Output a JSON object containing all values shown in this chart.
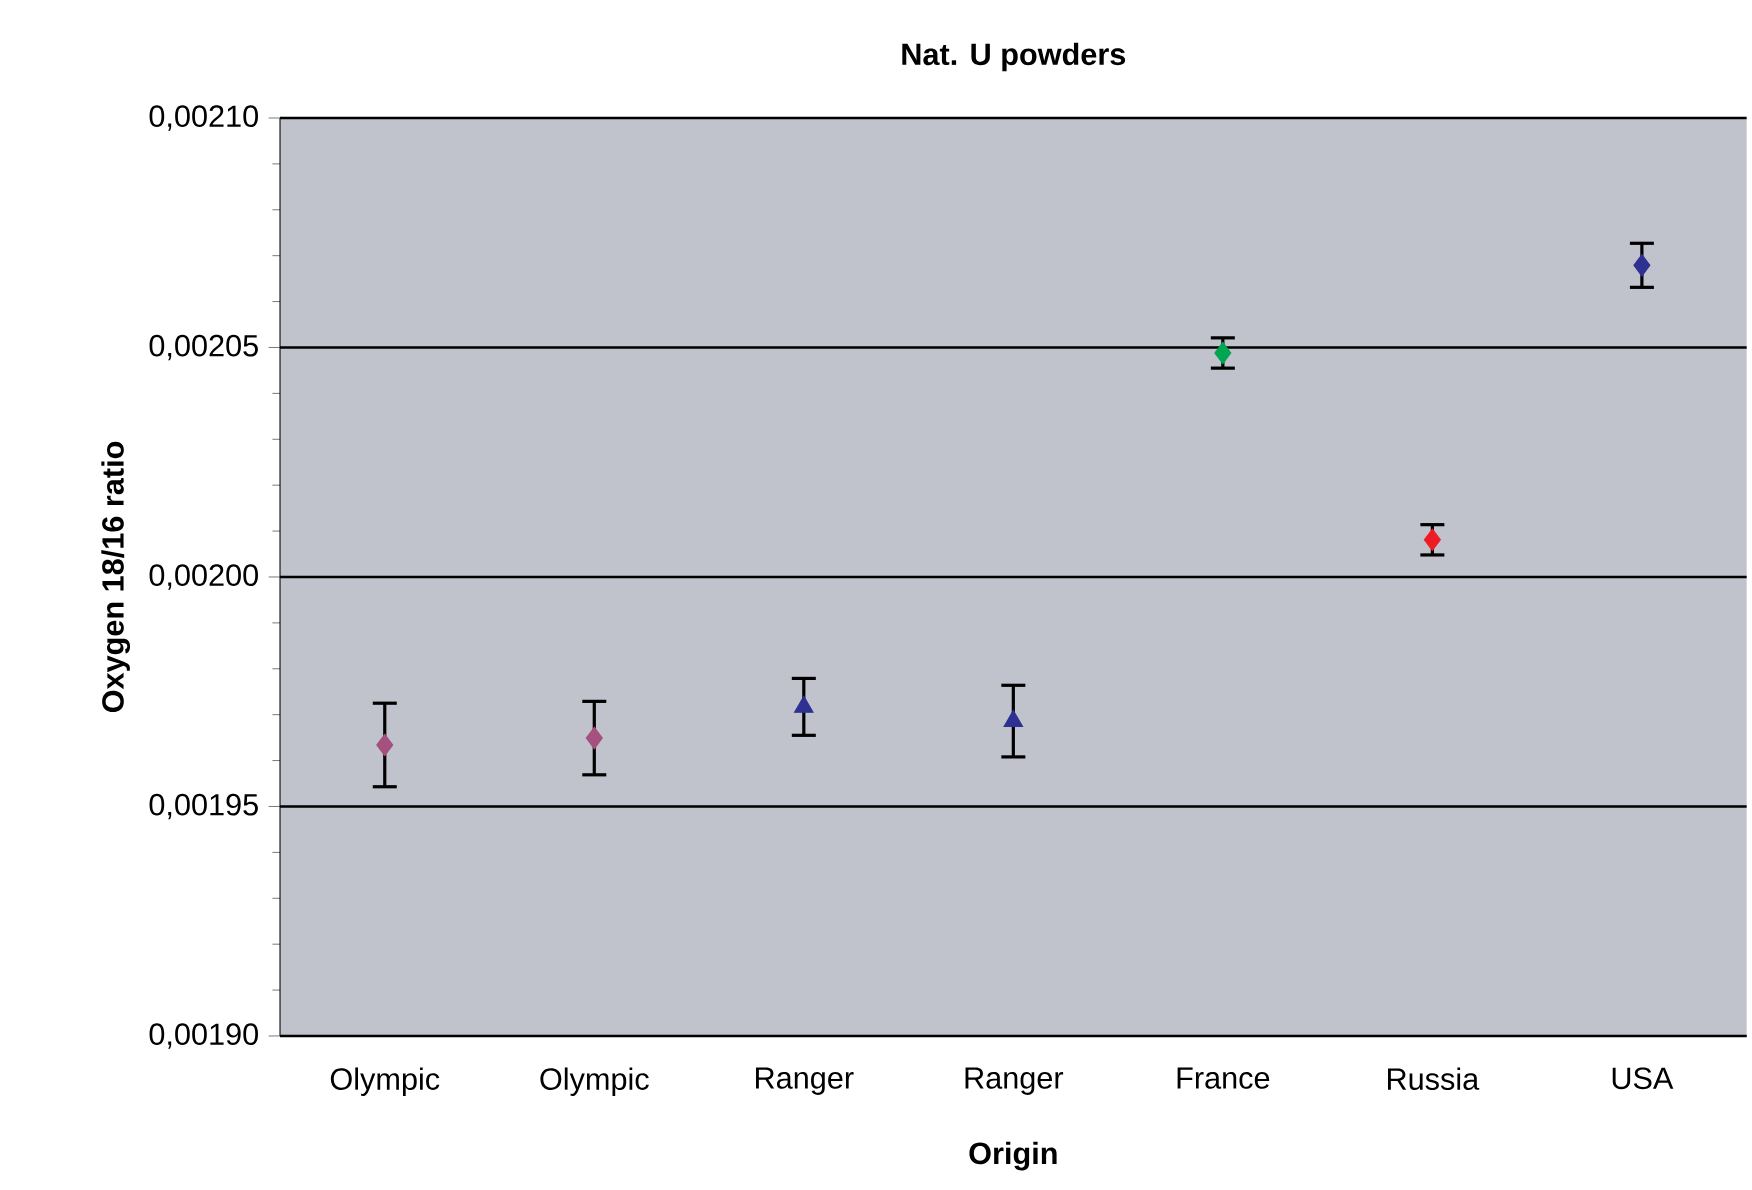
{
  "chart_data": {
    "type": "scatter",
    "title": "Nat. U powders",
    "xlabel": "Origin",
    "ylabel": "Oxygen 18/16 ratio",
    "categories": [
      "Olympic",
      "Olympic",
      "Ranger",
      "Ranger",
      "France",
      "Russia",
      "USA"
    ],
    "series": [
      {
        "color": "#a5507f",
        "marker": "diamond",
        "values": [
          0.0019634,
          0.0019649,
          null,
          null,
          null,
          null,
          null
        ],
        "errors": [
          9.1e-06,
          8e-06,
          null,
          null,
          null,
          null,
          null
        ]
      },
      {
        "color": "#2e3192",
        "marker": "triangle",
        "values": [
          null,
          null,
          0.0019717,
          0.0019686,
          null,
          null,
          null
        ],
        "errors": [
          null,
          null,
          6.2e-06,
          7.8e-06,
          null,
          null,
          null
        ]
      },
      {
        "color": "#00a651",
        "marker": "diamond",
        "values": [
          null,
          null,
          null,
          null,
          0.0020488,
          null,
          null
        ],
        "errors": [
          null,
          null,
          null,
          null,
          3.3e-06,
          null,
          null
        ]
      },
      {
        "color": "#ed1c24",
        "marker": "diamond",
        "values": [
          null,
          null,
          null,
          null,
          null,
          0.0020081,
          null
        ],
        "errors": [
          null,
          null,
          null,
          null,
          null,
          3.3e-06,
          null
        ]
      },
      {
        "color": "#2e3192",
        "marker": "diamond",
        "values": [
          null,
          null,
          null,
          null,
          null,
          null,
          0.0020679
        ],
        "errors": [
          null,
          null,
          null,
          null,
          null,
          null,
          4.8e-06
        ]
      }
    ],
    "ylim": [
      0.0019,
      0.0021
    ],
    "yticks": [
      {
        "value": 0.0019,
        "label": "0,00190"
      },
      {
        "value": 0.00195,
        "label": "0,00195"
      },
      {
        "value": 0.002,
        "label": "0,00200"
      },
      {
        "value": 0.00205,
        "label": "0,00205"
      },
      {
        "value": 0.0021,
        "label": "0,00210"
      }
    ],
    "grid": "y"
  }
}
